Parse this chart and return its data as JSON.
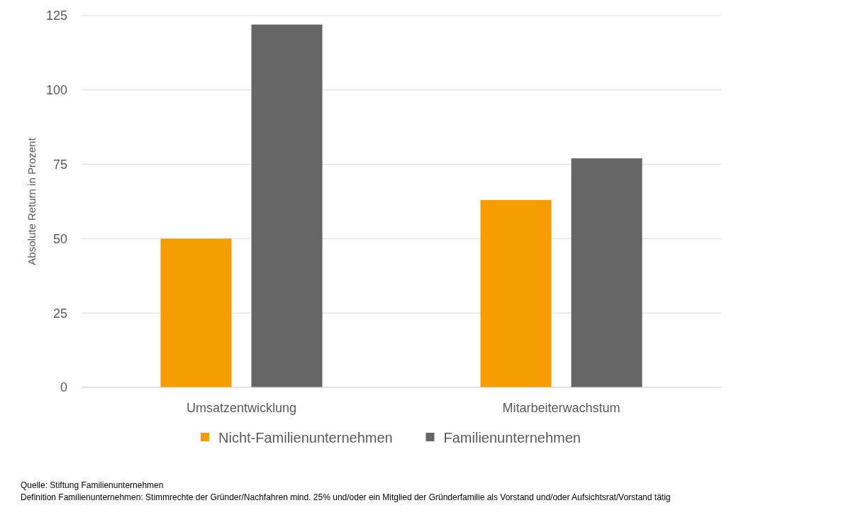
{
  "chart_data": {
    "type": "bar",
    "ylabel": "Absolute Return in Prozent",
    "categories": [
      "Umsatzentwicklung",
      "Mitarbeiterwachstum"
    ],
    "series": [
      {
        "name": "Nicht-Familienunternehmen",
        "color": "#f59d00",
        "values": [
          50,
          63
        ]
      },
      {
        "name": "Familienunternehmen",
        "color": "#666666",
        "values": [
          122,
          77
        ]
      }
    ],
    "ylim": [
      0,
      125
    ],
    "yticks": [
      0,
      25,
      50,
      75,
      100,
      125
    ],
    "grid": "y",
    "legend": "bottom",
    "annotations": [
      "Quelle: Stiftung Familienunternehmen",
      "Definition Familienunternehmen: Stimmrechte der Gründer/Nachfahren mind. 25% und/oder ein Mitglied der Gründerfamilie als Vorstand und/oder Aufsichtsrat/Vorstand tätig"
    ]
  }
}
